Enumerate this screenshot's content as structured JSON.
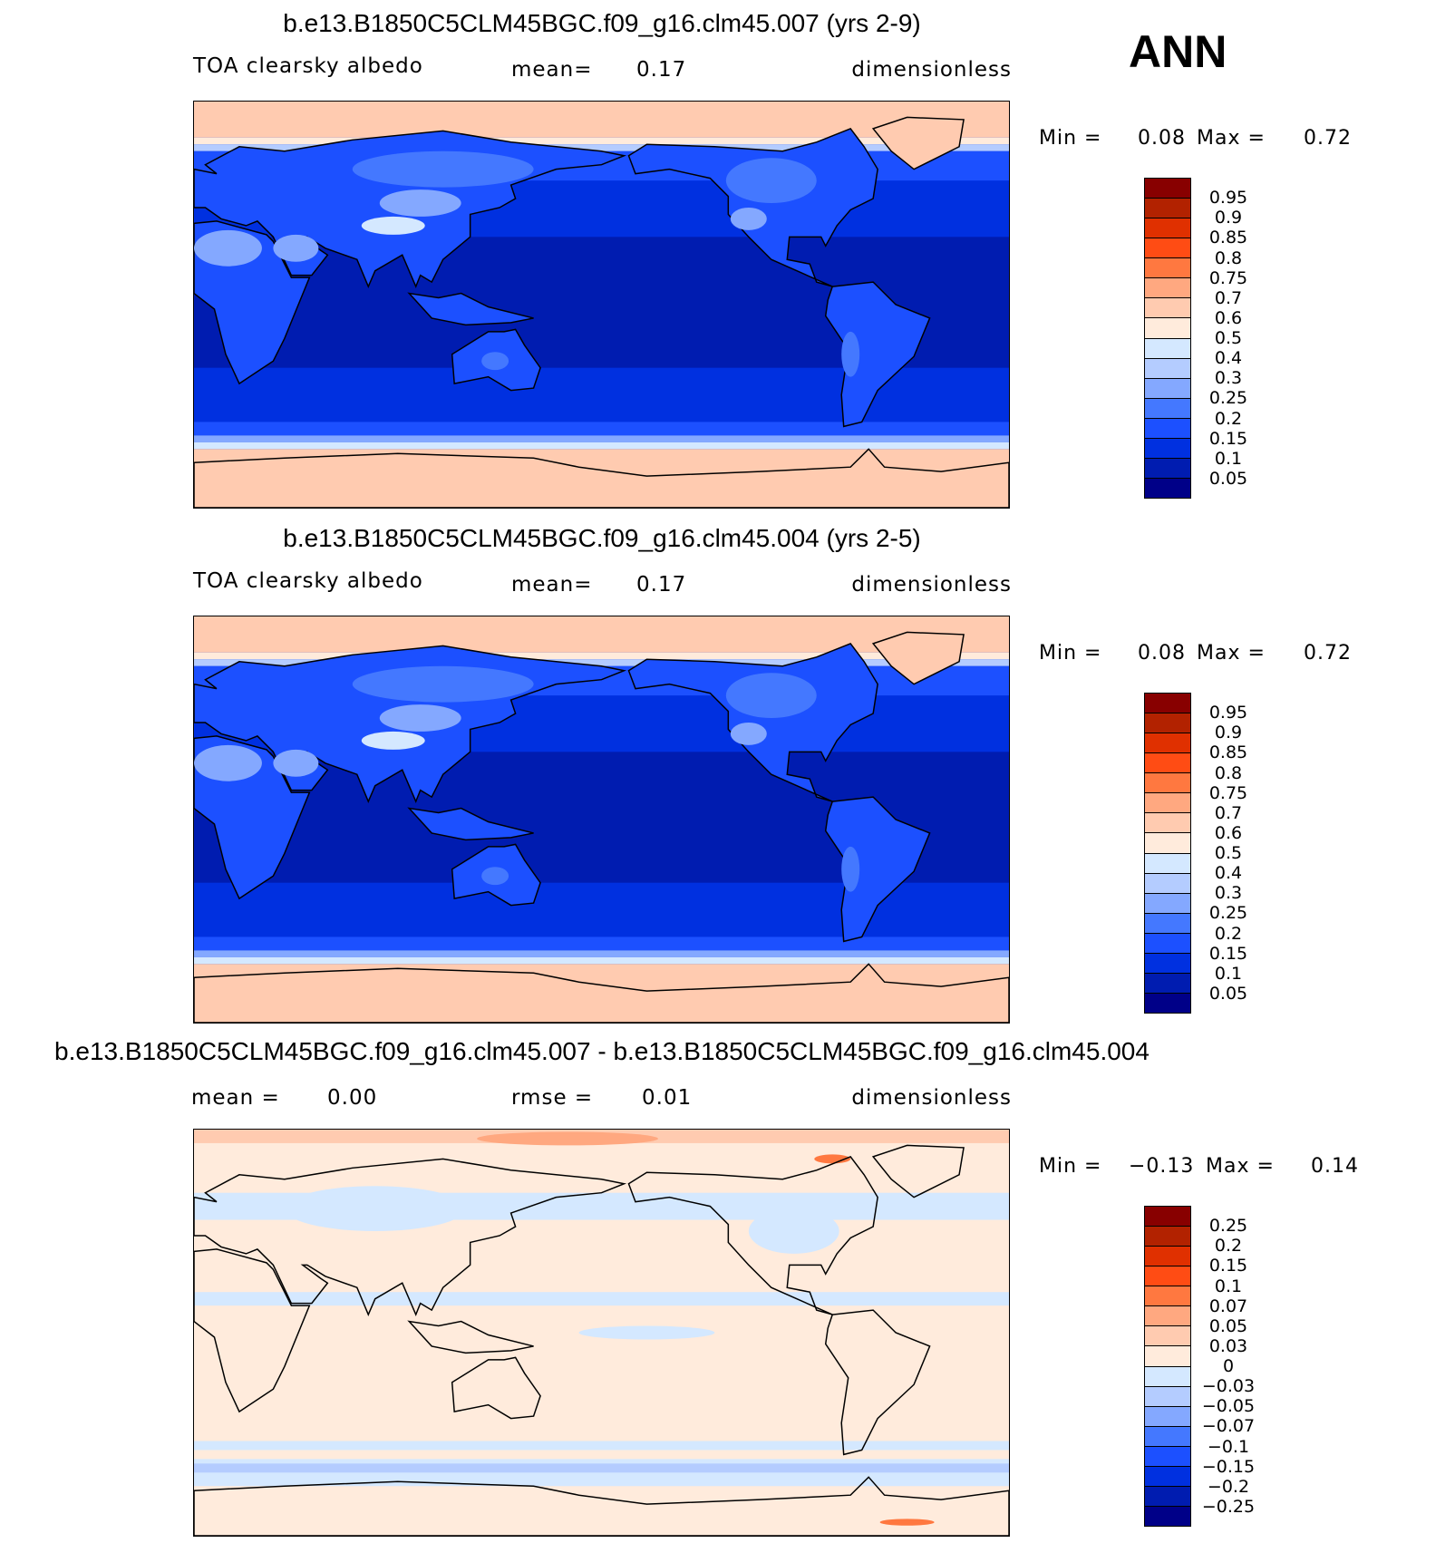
{
  "season": "ANN",
  "panels": [
    {
      "title": "b.e13.B1850C5CLM45BGC.f09_g16.clm45.007 (yrs 2-9)",
      "left_label": "TOA clearsky albedo",
      "center_label": "mean=",
      "center_value": "0.17",
      "units": "dimensionless",
      "min_label": "Min =",
      "min": "0.08",
      "max_label": "Max =",
      "max": "0.72",
      "colorbar": {
        "colors": [
          "#880000",
          "#b22200",
          "#e03000",
          "#ff4c14",
          "#ff7840",
          "#ffa880",
          "#ffcbb0",
          "#ffebdc",
          "#d4e8ff",
          "#b4ccff",
          "#84a8ff",
          "#4478ff",
          "#1c50ff",
          "#0030e0",
          "#001cb0",
          "#000088"
        ],
        "labels": [
          "0.95",
          "0.9",
          "0.85",
          "0.8",
          "0.75",
          "0.7",
          "0.6",
          "0.5",
          "0.4",
          "0.3",
          "0.25",
          "0.2",
          "0.15",
          "0.1",
          "0.05"
        ]
      }
    },
    {
      "title": "b.e13.B1850C5CLM45BGC.f09_g16.clm45.004 (yrs 2-5)",
      "left_label": "TOA clearsky albedo",
      "center_label": "mean=",
      "center_value": "0.17",
      "units": "dimensionless",
      "min_label": "Min =",
      "min": "0.08",
      "max_label": "Max =",
      "max": "0.72",
      "colorbar": {
        "colors": [
          "#880000",
          "#b22200",
          "#e03000",
          "#ff4c14",
          "#ff7840",
          "#ffa880",
          "#ffcbb0",
          "#ffebdc",
          "#d4e8ff",
          "#b4ccff",
          "#84a8ff",
          "#4478ff",
          "#1c50ff",
          "#0030e0",
          "#001cb0",
          "#000088"
        ],
        "labels": [
          "0.95",
          "0.9",
          "0.85",
          "0.8",
          "0.75",
          "0.7",
          "0.6",
          "0.5",
          "0.4",
          "0.3",
          "0.25",
          "0.2",
          "0.15",
          "0.1",
          "0.05"
        ]
      }
    },
    {
      "title": "b.e13.B1850C5CLM45BGC.f09_g16.clm45.007 - b.e13.B1850C5CLM45BGC.f09_g16.clm45.004",
      "left_label": "mean =",
      "left_value": "0.00",
      "center_label": "rmse =",
      "center_value": "0.01",
      "units": "dimensionless",
      "min_label": "Min =",
      "min": "−0.13",
      "max_label": "Max =",
      "max": "0.14",
      "colorbar": {
        "colors": [
          "#880000",
          "#b22200",
          "#e03000",
          "#ff4c14",
          "#ff7840",
          "#ffa880",
          "#ffcbb0",
          "#ffebdc",
          "#d4e8ff",
          "#b4ccff",
          "#84a8ff",
          "#4478ff",
          "#1c50ff",
          "#0030e0",
          "#001cb0",
          "#000088"
        ],
        "labels": [
          "0.25",
          "0.2",
          "0.15",
          "0.1",
          "0.07",
          "0.05",
          "0.03",
          "0",
          "−0.03",
          "−0.05",
          "−0.07",
          "−0.1",
          "−0.15",
          "−0.2",
          "−0.25"
        ]
      }
    }
  ]
}
